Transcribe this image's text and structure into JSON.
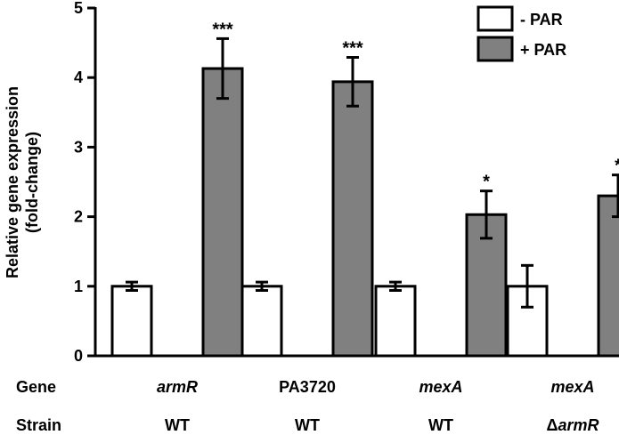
{
  "chart_data": {
    "type": "bar",
    "ylabel_line1": "Relative gene expression",
    "ylabel_line2": "(fold-change)",
    "ylim": [
      0,
      5
    ],
    "yticks": [
      "0",
      "1",
      "2",
      "3",
      "4",
      "5"
    ],
    "row_labels": {
      "gene": "Gene",
      "strain": "Strain"
    },
    "groups": [
      {
        "gene": "armR",
        "gene_italic": true,
        "strain_prefix": "",
        "strain": "WT",
        "strain_italic": false
      },
      {
        "gene": "PA3720",
        "gene_italic": false,
        "strain_prefix": "",
        "strain": "WT",
        "strain_italic": false
      },
      {
        "gene": "mexA",
        "gene_italic": true,
        "strain_prefix": "",
        "strain": "WT",
        "strain_italic": false
      },
      {
        "gene": "mexA",
        "gene_italic": true,
        "strain_prefix": "Δ",
        "strain": "armR",
        "strain_italic": true
      }
    ],
    "series": [
      {
        "name": "- PAR",
        "color": "#ffffff",
        "values": [
          1.0,
          1.0,
          1.0,
          1.0
        ],
        "errors": [
          0.06,
          0.06,
          0.06,
          0.3
        ],
        "significance": [
          "",
          "",
          "",
          ""
        ]
      },
      {
        "name": "+ PAR",
        "color": "#808080",
        "values": [
          4.13,
          3.94,
          2.03,
          2.3
        ],
        "errors": [
          0.43,
          0.35,
          0.34,
          0.3
        ],
        "significance": [
          "***",
          "***",
          "*",
          "*"
        ]
      }
    ],
    "legend_position": "top-right"
  }
}
